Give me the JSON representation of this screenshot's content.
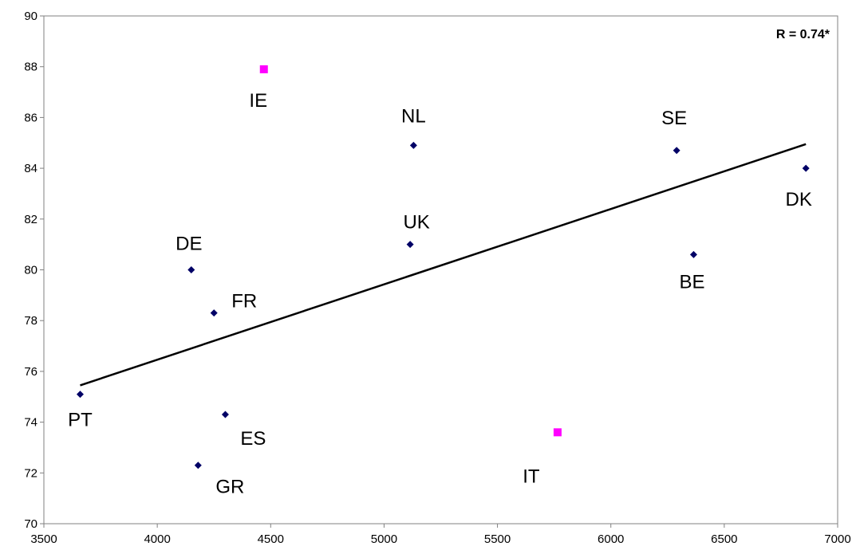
{
  "chart_data": {
    "type": "scatter",
    "title": "",
    "xlabel": "",
    "ylabel": "",
    "xlim": [
      3500,
      7000
    ],
    "ylim": [
      70,
      90
    ],
    "x_ticks": [
      3500,
      4000,
      4500,
      5000,
      5500,
      6000,
      6500,
      7000
    ],
    "y_ticks": [
      70,
      72,
      74,
      76,
      78,
      80,
      82,
      84,
      86,
      88,
      90
    ],
    "grid": false,
    "legend": "none",
    "annotation": "R = 0.74*",
    "colors": {
      "series_default": "#000066",
      "series_highlight": "#ff00ff",
      "trendline": "#000000",
      "axes": "#808080"
    },
    "points": [
      {
        "label": "PT",
        "x": 3660,
        "y": 75.1,
        "highlight": false
      },
      {
        "label": "DE",
        "x": 4150,
        "y": 80.0,
        "highlight": false
      },
      {
        "label": "GR",
        "x": 4180,
        "y": 72.3,
        "highlight": false
      },
      {
        "label": "FR",
        "x": 4250,
        "y": 78.3,
        "highlight": false
      },
      {
        "label": "ES",
        "x": 4300,
        "y": 74.3,
        "highlight": false
      },
      {
        "label": "IE",
        "x": 4470,
        "y": 87.9,
        "highlight": true
      },
      {
        "label": "UK",
        "x": 5115,
        "y": 81.0,
        "highlight": false
      },
      {
        "label": "NL",
        "x": 5130,
        "y": 84.9,
        "highlight": false
      },
      {
        "label": "IT",
        "x": 5765,
        "y": 73.6,
        "highlight": true
      },
      {
        "label": "SE",
        "x": 6290,
        "y": 84.7,
        "highlight": false
      },
      {
        "label": "BE",
        "x": 6365,
        "y": 80.6,
        "highlight": false
      },
      {
        "label": "DK",
        "x": 6860,
        "y": 84.0,
        "highlight": false
      }
    ],
    "trendline": {
      "x1": 3660,
      "y1": 75.45,
      "x2": 6860,
      "y2": 84.95
    }
  }
}
